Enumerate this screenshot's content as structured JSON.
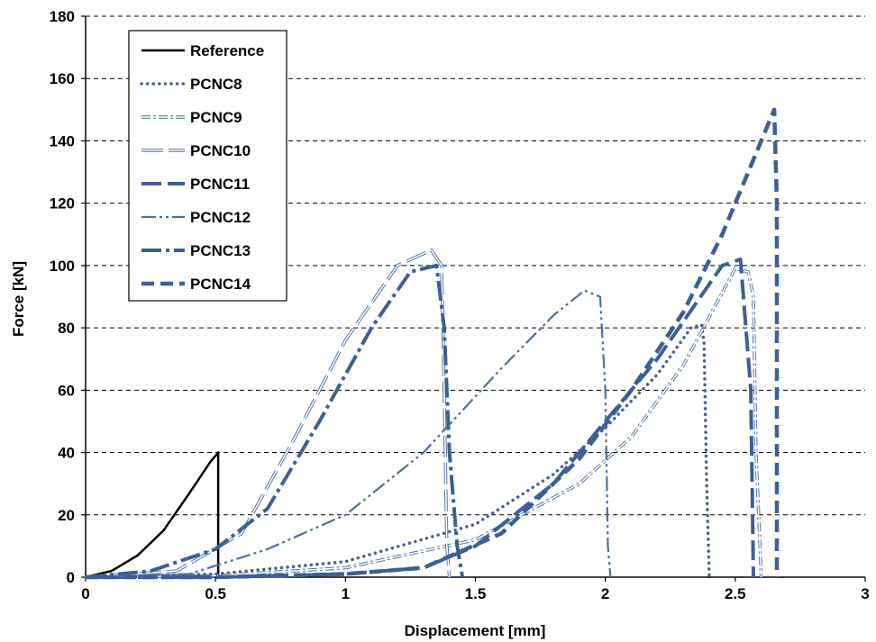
{
  "chart_data": {
    "type": "line",
    "title": "",
    "xlabel": "Displacement [mm]",
    "ylabel": "Force [kN]",
    "xlim": [
      0,
      3
    ],
    "ylim": [
      0,
      180
    ],
    "xticks": [
      0,
      0.5,
      1,
      1.5,
      2,
      2.5,
      3
    ],
    "xtick_labels": [
      "0",
      "0.5",
      "1",
      "1.5",
      "2",
      "2.5",
      "3"
    ],
    "yticks": [
      0,
      20,
      40,
      60,
      80,
      100,
      120,
      140,
      160,
      180
    ],
    "ytick_labels": [
      "0",
      "20",
      "40",
      "60",
      "80",
      "100",
      "120",
      "140",
      "160",
      "180"
    ],
    "grid": "horizontal dashed",
    "legend_position": "top-left",
    "series": [
      {
        "name": "Reference",
        "color": "#000000",
        "style": "solid",
        "x": [
          0,
          0.1,
          0.2,
          0.3,
          0.4,
          0.48,
          0.51,
          0.51
        ],
        "y": [
          0,
          2,
          7,
          15,
          27,
          37,
          40,
          0
        ]
      },
      {
        "name": "PCNC8",
        "color": "#4a5e98",
        "style": "dotted",
        "x": [
          0,
          0.5,
          1.0,
          1.5,
          1.8,
          2.0,
          2.2,
          2.33,
          2.37,
          2.38,
          2.39,
          2.4
        ],
        "y": [
          0,
          1,
          5,
          17,
          33,
          48,
          65,
          80,
          81,
          75,
          30,
          0
        ]
      },
      {
        "name": "PCNC9",
        "color": "#4a6fa5",
        "style": "dash-dot",
        "x": [
          0,
          0.5,
          1.0,
          1.5,
          1.9,
          2.1,
          2.3,
          2.5,
          2.55,
          2.57,
          2.58,
          2.6
        ],
        "y": [
          0,
          0.5,
          3,
          12,
          30,
          45,
          68,
          99,
          98,
          90,
          40,
          0
        ]
      },
      {
        "name": "PCNC10",
        "color": "#4a6fa5",
        "style": "long-dash-double",
        "x": [
          0,
          0.35,
          0.6,
          0.8,
          1.0,
          1.2,
          1.33,
          1.37,
          1.38,
          1.39,
          1.4
        ],
        "y": [
          0,
          2,
          14,
          44,
          76,
          100,
          105,
          100,
          60,
          10,
          0
        ]
      },
      {
        "name": "PCNC11",
        "color": "#3c5f96",
        "style": "long-dash",
        "x": [
          0,
          0.5,
          1.0,
          1.3,
          1.5,
          1.8,
          2.0,
          2.2,
          2.45,
          2.52,
          2.56,
          2.57
        ],
        "y": [
          0,
          0,
          1,
          3,
          10,
          30,
          50,
          70,
          100,
          102,
          60,
          0
        ]
      },
      {
        "name": "PCNC12",
        "color": "#4a6fa5",
        "style": "dash-dot-dot",
        "x": [
          0,
          0.4,
          0.7,
          1.0,
          1.3,
          1.6,
          1.8,
          1.92,
          1.98,
          2.0,
          2.01,
          2.02
        ],
        "y": [
          0,
          1,
          9,
          20,
          40,
          67,
          84,
          92,
          90,
          60,
          10,
          0
        ]
      },
      {
        "name": "PCNC13",
        "color": "#3c5f96",
        "style": "dash-dot-thick",
        "x": [
          0,
          0.25,
          0.5,
          0.7,
          0.9,
          1.1,
          1.25,
          1.35,
          1.38,
          1.4,
          1.43,
          1.45
        ],
        "y": [
          0,
          2,
          9,
          22,
          50,
          80,
          98,
          100,
          80,
          40,
          10,
          0
        ]
      },
      {
        "name": "PCNC14",
        "color": "#3c5f96",
        "style": "dashed-thick",
        "x": [
          0,
          0.5,
          1.0,
          1.3,
          1.6,
          1.9,
          2.1,
          2.3,
          2.45,
          2.6,
          2.65,
          2.66,
          2.66
        ],
        "y": [
          0,
          0,
          1,
          3,
          14,
          38,
          60,
          85,
          110,
          140,
          150,
          120,
          0
        ]
      }
    ]
  }
}
